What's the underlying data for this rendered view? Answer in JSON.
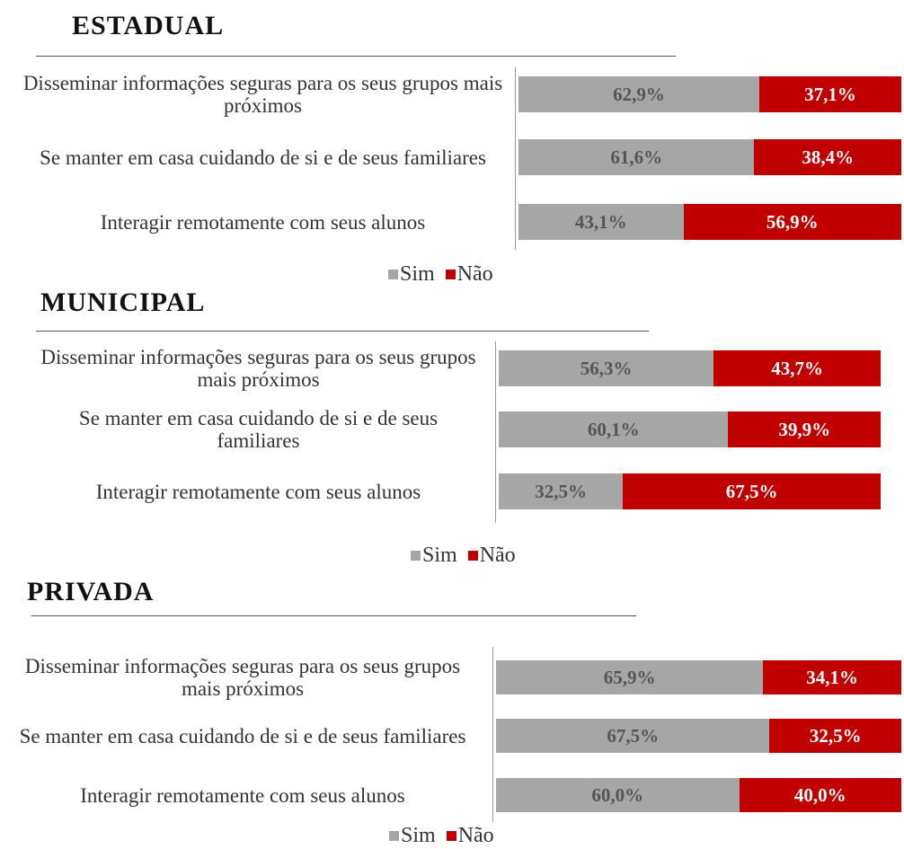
{
  "chart_data": [
    {
      "type": "stacked-bar",
      "title": "ESTADUAL",
      "categories": [
        "Disseminar informações seguras para os seus grupos mais próximos",
        "Se manter em casa cuidando de si e de seus familiares",
        "Interagir remotamente com seus alunos"
      ],
      "series": [
        {
          "name": "Sim",
          "color": "#a6a6a6",
          "values": [
            62.9,
            61.6,
            43.1
          ],
          "value_labels": [
            "62,9%",
            "61,6%",
            "43,1%"
          ]
        },
        {
          "name": "Não",
          "color": "#c00000",
          "values": [
            37.1,
            38.4,
            56.9
          ],
          "value_labels": [
            "37,1%",
            "38,4%",
            "56,9%"
          ]
        }
      ],
      "xlim": [
        0,
        100
      ]
    },
    {
      "type": "stacked-bar",
      "title": "MUNICIPAL",
      "categories": [
        "Disseminar informações seguras para os seus grupos mais próximos",
        "Se manter em casa cuidando de si e de seus familiares",
        "Interagir remotamente com seus alunos"
      ],
      "series": [
        {
          "name": "Sim",
          "color": "#a6a6a6",
          "values": [
            56.3,
            60.1,
            32.5
          ],
          "value_labels": [
            "56,3%",
            "60,1%",
            "32,5%"
          ]
        },
        {
          "name": "Não",
          "color": "#c00000",
          "values": [
            43.7,
            39.9,
            67.5
          ],
          "value_labels": [
            "43,7%",
            "39,9%",
            "67,5%"
          ]
        }
      ],
      "xlim": [
        0,
        100
      ]
    },
    {
      "type": "stacked-bar",
      "title": "PRIVADA",
      "categories": [
        "Disseminar informações seguras para os seus grupos mais próximos",
        "Se manter em casa cuidando de si e de seus familiares",
        "Interagir remotamente com seus alunos"
      ],
      "series": [
        {
          "name": "Sim",
          "color": "#a6a6a6",
          "values": [
            65.9,
            67.5,
            60.0
          ],
          "value_labels": [
            "65,9%",
            "67,5%",
            "60,0%"
          ]
        },
        {
          "name": "Não",
          "color": "#c00000",
          "values": [
            34.1,
            32.5,
            40.0
          ],
          "value_labels": [
            "34,1%",
            "32,5%",
            "40,0%"
          ]
        }
      ],
      "xlim": [
        0,
        100
      ]
    }
  ]
}
